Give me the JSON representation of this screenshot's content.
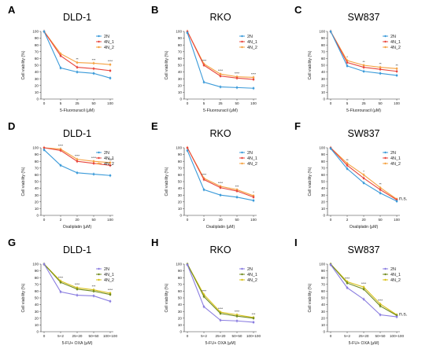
{
  "chart_data": [
    {
      "type": "line",
      "letter": "A",
      "title": "DLD-1",
      "xlabel": "5-Fluorouracil (μM)",
      "ylabel": "Cell viability (%)",
      "categories": [
        "0",
        "5",
        "25",
        "50",
        "100"
      ],
      "ylim": [
        0,
        100
      ],
      "yticks": [
        0,
        10,
        20,
        30,
        40,
        50,
        60,
        70,
        80,
        90,
        100
      ],
      "series": [
        {
          "name": "2N",
          "color": "#3a9ad9",
          "values": [
            100,
            46,
            40,
            38,
            31
          ]
        },
        {
          "name": "4N_1",
          "color": "#e8453c",
          "values": [
            100,
            64,
            47,
            45,
            42
          ]
        },
        {
          "name": "4N_2",
          "color": "#f5a13f",
          "values": [
            100,
            67,
            54,
            53,
            51
          ]
        }
      ],
      "annotations": [
        "",
        "",
        "**",
        "***",
        "****"
      ]
    },
    {
      "type": "line",
      "letter": "B",
      "title": "RKO",
      "xlabel": "5-Fluorouracil (μM)",
      "ylabel": "Cell viability (%)",
      "categories": [
        "0",
        "5",
        "25",
        "50",
        "100"
      ],
      "ylim": [
        0,
        100
      ],
      "yticks": [
        0,
        10,
        20,
        30,
        40,
        50,
        60,
        70,
        80,
        90,
        100
      ],
      "series": [
        {
          "name": "2N",
          "color": "#3a9ad9",
          "values": [
            98,
            25,
            18,
            17,
            16
          ]
        },
        {
          "name": "4N_1",
          "color": "#e8453c",
          "values": [
            100,
            50,
            34,
            31,
            29
          ]
        },
        {
          "name": "4N_2",
          "color": "#f5a13f",
          "values": [
            100,
            52,
            37,
            33,
            32
          ]
        }
      ],
      "annotations": [
        "",
        "****",
        "****",
        "****",
        "****"
      ]
    },
    {
      "type": "line",
      "letter": "C",
      "title": "SW837",
      "xlabel": "5-Fluorouracil (μM)",
      "ylabel": "Cell viability (%)",
      "categories": [
        "0",
        "5",
        "25",
        "50",
        "100"
      ],
      "ylim": [
        0,
        100
      ],
      "yticks": [
        0,
        10,
        20,
        30,
        40,
        50,
        60,
        70,
        80,
        90,
        100
      ],
      "series": [
        {
          "name": "2N",
          "color": "#3a9ad9",
          "values": [
            100,
            49,
            41,
            38,
            35
          ]
        },
        {
          "name": "4N_1",
          "color": "#e8453c",
          "values": [
            100,
            54,
            47,
            44,
            41
          ]
        },
        {
          "name": "4N_2",
          "color": "#f5a13f",
          "values": [
            100,
            57,
            50,
            47,
            45
          ]
        }
      ],
      "annotations": [
        "",
        "*",
        "**",
        "**",
        "**"
      ]
    },
    {
      "type": "line",
      "letter": "D",
      "title": "DLD-1",
      "xlabel": "Oxaliplatin (μM)",
      "ylabel": "Cell viability (%)",
      "categories": [
        "0",
        "2",
        "20",
        "50",
        "100"
      ],
      "ylim": [
        0,
        100
      ],
      "yticks": [
        0,
        10,
        20,
        30,
        40,
        50,
        60,
        70,
        80,
        90,
        100
      ],
      "series": [
        {
          "name": "2N",
          "color": "#3a9ad9",
          "values": [
            97,
            74,
            63,
            61,
            59
          ]
        },
        {
          "name": "4N_1",
          "color": "#e8453c",
          "values": [
            100,
            96,
            80,
            77,
            74
          ]
        },
        {
          "name": "4N_2",
          "color": "#f5a13f",
          "values": [
            100,
            98,
            83,
            80,
            78
          ]
        }
      ],
      "annotations": [
        "",
        "****",
        "****",
        "****",
        "****"
      ]
    },
    {
      "type": "line",
      "letter": "E",
      "title": "RKO",
      "xlabel": "Oxaliplatin (μM)",
      "ylabel": "Cell viability (%)",
      "categories": [
        "0",
        "2",
        "20",
        "50",
        "100"
      ],
      "ylim": [
        0,
        100
      ],
      "yticks": [
        0,
        10,
        20,
        30,
        40,
        50,
        60,
        70,
        80,
        90,
        100
      ],
      "series": [
        {
          "name": "2N",
          "color": "#3a9ad9",
          "values": [
            96,
            38,
            30,
            27,
            22
          ]
        },
        {
          "name": "4N_1",
          "color": "#e8453c",
          "values": [
            100,
            53,
            41,
            36,
            27
          ]
        },
        {
          "name": "4N_2",
          "color": "#f5a13f",
          "values": [
            100,
            55,
            43,
            38,
            29
          ]
        }
      ],
      "annotations": [
        "",
        "****",
        "****",
        "***",
        "*"
      ]
    },
    {
      "type": "line",
      "letter": "F",
      "title": "SW837",
      "xlabel": "Oxaliplatin (μM)",
      "ylabel": "Cell viability (%)",
      "categories": [
        "0",
        "2",
        "20",
        "50",
        "100"
      ],
      "ylim": [
        0,
        100
      ],
      "yticks": [
        0,
        10,
        20,
        30,
        40,
        50,
        60,
        70,
        80,
        90,
        100
      ],
      "series": [
        {
          "name": "2N",
          "color": "#3a9ad9",
          "values": [
            99,
            69,
            48,
            33,
            21
          ]
        },
        {
          "name": "4N_1",
          "color": "#e8453c",
          "values": [
            100,
            74,
            55,
            38,
            23
          ]
        },
        {
          "name": "4N_2",
          "color": "#f5a13f",
          "values": [
            100,
            77,
            60,
            41,
            24
          ]
        }
      ],
      "annotations": [
        "",
        "**",
        "*",
        "**",
        "n.s."
      ]
    },
    {
      "type": "line",
      "letter": "G",
      "title": "DLD-1",
      "xlabel": "5-FU+ OXA (μM)",
      "ylabel": "Cell viability (%)",
      "categories": [
        "0",
        "5+2",
        "25+20",
        "50+50",
        "100+100"
      ],
      "ylim": [
        0,
        100
      ],
      "yticks": [
        0,
        10,
        20,
        30,
        40,
        50,
        60,
        70,
        80,
        90,
        100
      ],
      "series": [
        {
          "name": "2N",
          "color": "#8a7de0",
          "values": [
            100,
            59,
            54,
            53,
            45
          ]
        },
        {
          "name": "4N_1",
          "color": "#6f8a1e",
          "values": [
            100,
            73,
            63,
            60,
            55
          ]
        },
        {
          "name": "4N_2",
          "color": "#d9c21a",
          "values": [
            100,
            75,
            65,
            62,
            57
          ]
        }
      ],
      "annotations": [
        "",
        "****",
        "****",
        "***",
        "****"
      ]
    },
    {
      "type": "line",
      "letter": "H",
      "title": "RKO",
      "xlabel": "5-FU+ OXA (μM)",
      "ylabel": "Cell viability (%)",
      "categories": [
        "0",
        "5+2",
        "25+20",
        "50+50",
        "100+100"
      ],
      "ylim": [
        0,
        100
      ],
      "yticks": [
        0,
        10,
        20,
        30,
        40,
        50,
        60,
        70,
        80,
        90,
        100
      ],
      "series": [
        {
          "name": "2N",
          "color": "#8a7de0",
          "values": [
            99,
            37,
            17,
            16,
            14
          ]
        },
        {
          "name": "4N_1",
          "color": "#6f8a1e",
          "values": [
            100,
            52,
            27,
            23,
            20
          ]
        },
        {
          "name": "4N_2",
          "color": "#d9c21a",
          "values": [
            100,
            55,
            29,
            25,
            21
          ]
        }
      ],
      "annotations": [
        "",
        "****",
        "****",
        "****",
        "***"
      ]
    },
    {
      "type": "line",
      "letter": "I",
      "title": "SW837",
      "xlabel": "5-FU+ OXA (μM)",
      "ylabel": "Cell viability (%)",
      "categories": [
        "0",
        "5+2",
        "25+20",
        "50+50",
        "100+100"
      ],
      "ylim": [
        0,
        100
      ],
      "yticks": [
        0,
        10,
        20,
        30,
        40,
        50,
        60,
        70,
        80,
        90,
        100
      ],
      "series": [
        {
          "name": "2N",
          "color": "#8a7de0",
          "values": [
            99,
            65,
            48,
            25,
            22
          ]
        },
        {
          "name": "4N_1",
          "color": "#6f8a1e",
          "values": [
            100,
            72,
            63,
            38,
            24
          ]
        },
        {
          "name": "4N_2",
          "color": "#d9c21a",
          "values": [
            100,
            74,
            66,
            41,
            25
          ]
        }
      ],
      "annotations": [
        "",
        "****",
        "****",
        "****",
        "n.s."
      ]
    }
  ]
}
